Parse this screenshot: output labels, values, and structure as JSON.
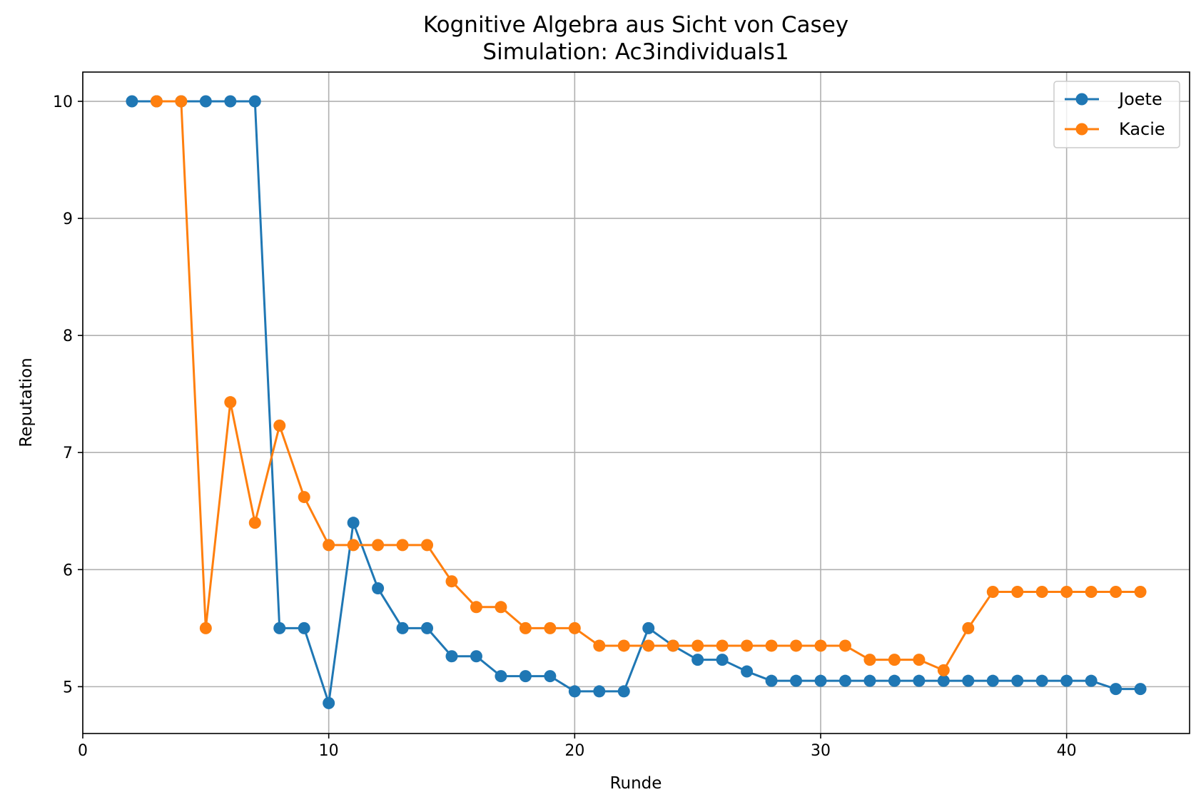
{
  "chart_data": {
    "type": "line",
    "title": "Kognitive Algebra aus Sicht von Casey",
    "subtitle": "Simulation: Ac3individuals1",
    "xlabel": "Runde",
    "ylabel": "Reputation",
    "xlim": [
      0,
      45
    ],
    "ylim": [
      4.6,
      10.25
    ],
    "xticks": [
      0,
      10,
      20,
      30,
      40
    ],
    "yticks": [
      5,
      6,
      7,
      8,
      9,
      10
    ],
    "grid": true,
    "legend_position": "top-right",
    "series": [
      {
        "name": "Joete",
        "color": "#1f77b4",
        "x": [
          2,
          3,
          4,
          5,
          6,
          7,
          8,
          9,
          10,
          11,
          12,
          13,
          14,
          15,
          16,
          17,
          18,
          19,
          20,
          21,
          22,
          23,
          24,
          25,
          26,
          27,
          28,
          29,
          30,
          31,
          32,
          33,
          34,
          35,
          36,
          37,
          38,
          39,
          40,
          41,
          42,
          43
        ],
        "y": [
          10,
          10,
          10,
          10,
          10,
          10,
          5.5,
          5.5,
          4.86,
          6.4,
          5.84,
          5.5,
          5.5,
          5.26,
          5.26,
          5.09,
          5.09,
          5.09,
          4.96,
          4.96,
          4.96,
          5.5,
          5.35,
          5.23,
          5.23,
          5.13,
          5.05,
          5.05,
          5.05,
          5.05,
          5.05,
          5.05,
          5.05,
          5.05,
          5.05,
          5.05,
          5.05,
          5.05,
          5.05,
          5.05,
          4.98,
          4.98
        ]
      },
      {
        "name": "Kacie",
        "color": "#ff7f0e",
        "x": [
          3,
          4,
          5,
          6,
          7,
          8,
          9,
          10,
          11,
          12,
          13,
          14,
          15,
          16,
          17,
          18,
          19,
          20,
          21,
          22,
          23,
          24,
          25,
          26,
          27,
          28,
          29,
          30,
          31,
          32,
          33,
          34,
          35,
          36,
          37,
          38,
          39,
          40,
          41,
          42,
          43
        ],
        "y": [
          10,
          10,
          5.5,
          7.43,
          6.4,
          7.23,
          6.62,
          6.21,
          6.21,
          6.21,
          6.21,
          6.21,
          5.9,
          5.68,
          5.68,
          5.5,
          5.5,
          5.5,
          5.35,
          5.35,
          5.35,
          5.35,
          5.35,
          5.35,
          5.35,
          5.35,
          5.35,
          5.35,
          5.35,
          5.23,
          5.23,
          5.23,
          5.14,
          5.5,
          5.81,
          5.81,
          5.81,
          5.81,
          5.81,
          5.81,
          5.81
        ]
      }
    ]
  }
}
